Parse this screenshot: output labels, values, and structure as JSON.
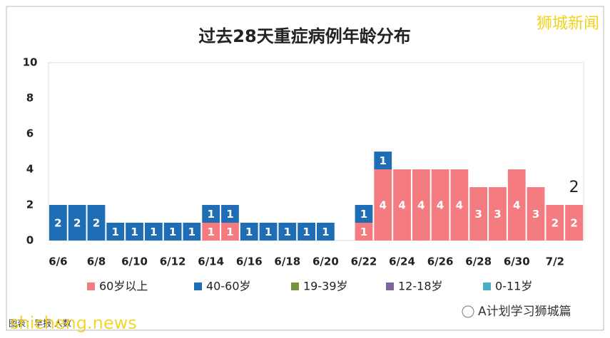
{
  "chart_data": {
    "type": "stacked_bar",
    "title": "过去28天重症病例年龄分布",
    "categories": [
      "6/6",
      null,
      "6/8",
      null,
      "6/10",
      null,
      "6/12",
      null,
      "6/14",
      null,
      "6/16",
      null,
      "6/18",
      null,
      "6/20",
      null,
      "6/22",
      null,
      "6/24",
      null,
      "6/26",
      null,
      "6/28",
      null,
      "6/30",
      null,
      "7/2",
      null
    ],
    "series": [
      {
        "name": "60岁以上",
        "color": "#f47c80",
        "values": [
          0,
          0,
          0,
          0,
          0,
          0,
          0,
          0,
          1,
          1,
          0,
          0,
          0,
          0,
          0,
          0,
          1,
          4,
          4,
          4,
          4,
          4,
          3,
          3,
          4,
          3,
          2,
          2
        ]
      },
      {
        "name": "40-60岁",
        "color": "#1f6db5",
        "values": [
          2,
          2,
          2,
          1,
          1,
          1,
          1,
          1,
          1,
          1,
          1,
          1,
          1,
          1,
          1,
          0,
          1,
          1,
          0,
          0,
          0,
          0,
          0,
          0,
          0,
          0,
          0,
          0
        ]
      },
      {
        "name": "19-39岁",
        "color": "#77933c",
        "values": [
          0,
          0,
          0,
          0,
          0,
          0,
          0,
          0,
          0,
          0,
          0,
          0,
          0,
          0,
          0,
          0,
          0,
          0,
          0,
          0,
          0,
          0,
          0,
          0,
          0,
          0,
          0,
          0
        ]
      },
      {
        "name": "12-18岁",
        "color": "#8064a2",
        "values": [
          0,
          0,
          0,
          0,
          0,
          0,
          0,
          0,
          0,
          0,
          0,
          0,
          0,
          0,
          0,
          0,
          0,
          0,
          0,
          0,
          0,
          0,
          0,
          0,
          0,
          0,
          0,
          0
        ]
      },
      {
        "name": "0-11岁",
        "color": "#4bacc6",
        "values": [
          0,
          0,
          0,
          0,
          0,
          0,
          0,
          0,
          0,
          0,
          0,
          0,
          0,
          0,
          0,
          0,
          0,
          0,
          0,
          0,
          0,
          0,
          0,
          0,
          0,
          0,
          0,
          0
        ]
      }
    ],
    "ylim": [
      0,
      10
    ],
    "yticks": [
      0,
      2,
      4,
      6,
      8,
      10
    ],
    "grid": false,
    "annotation": "2"
  },
  "watermarks": {
    "top": "狮城新闻",
    "bottom_left": "shicheng.news",
    "source": "图表：早报·人数",
    "bottom_right": "A计划学习狮城篇"
  }
}
